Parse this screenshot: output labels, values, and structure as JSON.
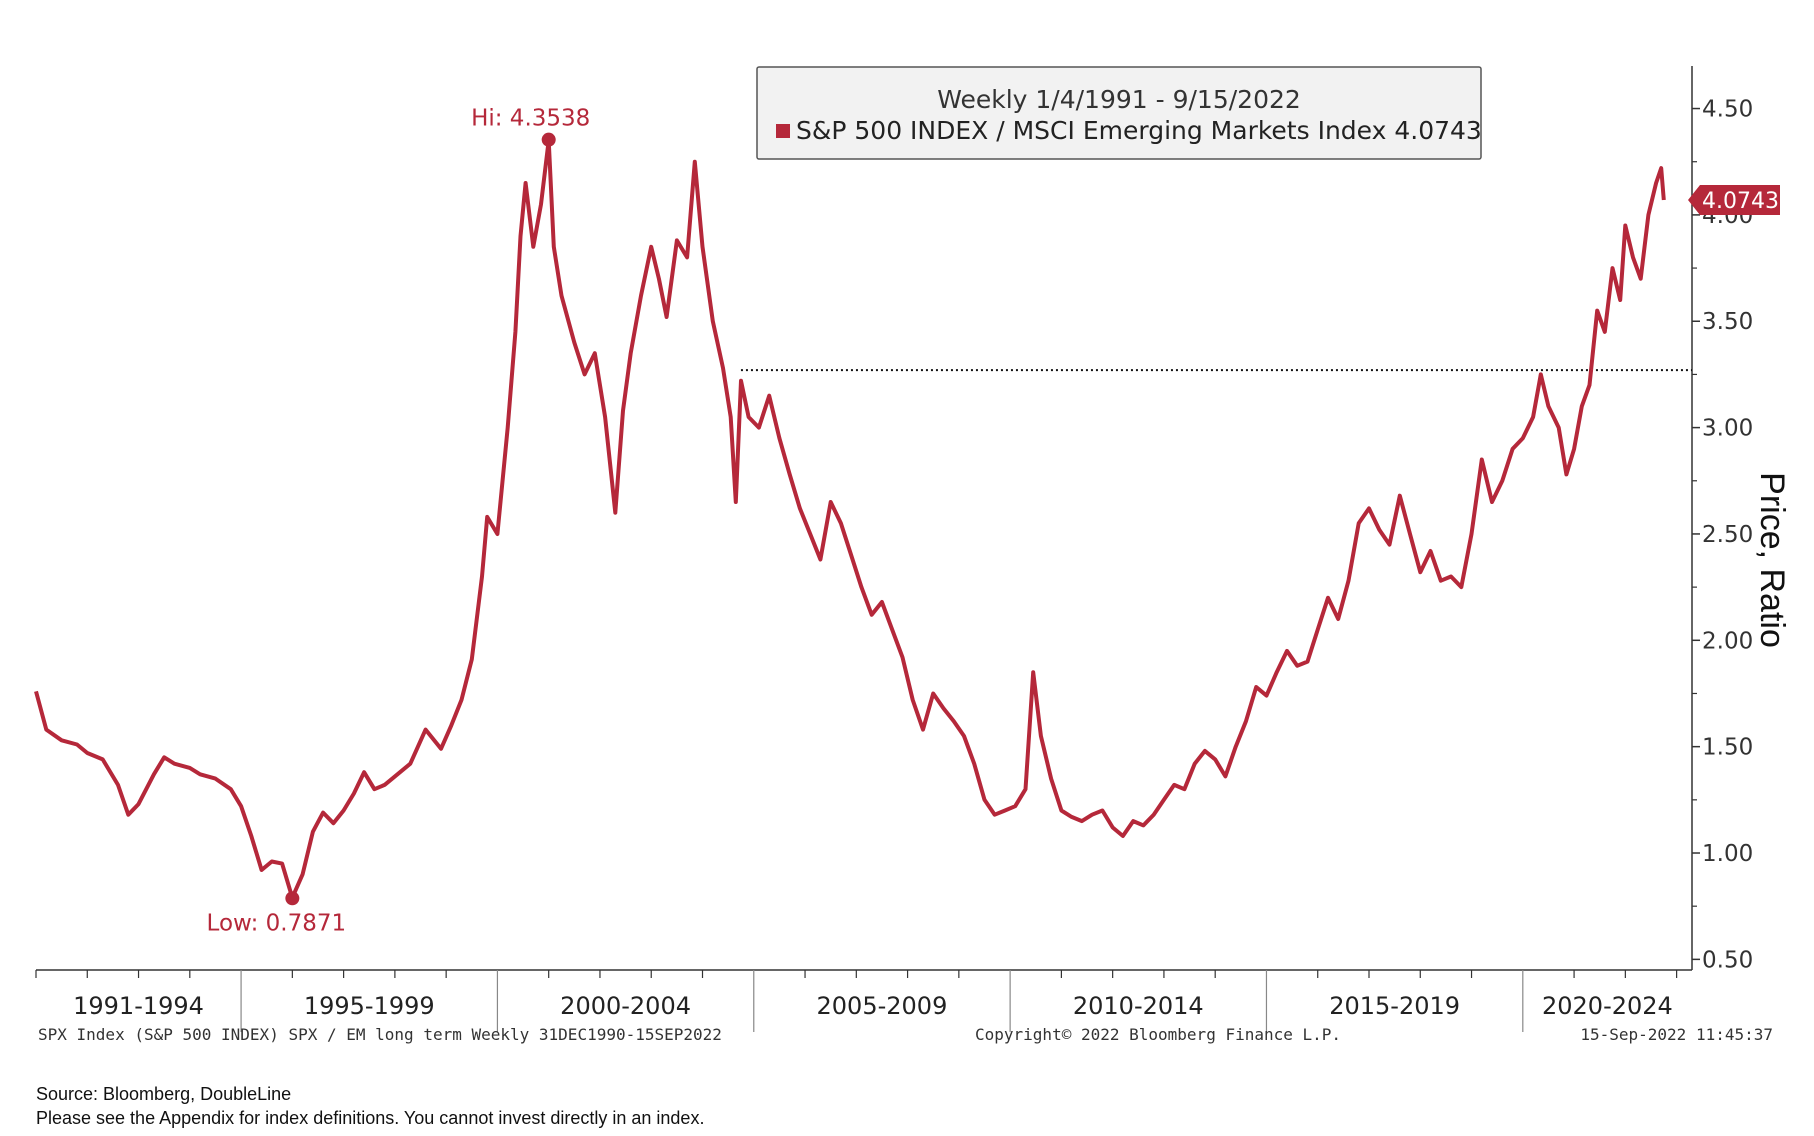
{
  "chart_data": {
    "type": "line",
    "title": "Weekly 1/4/1991 - 9/15/2022",
    "series": [
      {
        "name": "S&P 500 INDEX / MSCI Emerging Markets Index",
        "legend_label": "S&P 500 INDEX / MSCI Emerging Markets Index 4.0743",
        "last_value": "4.0743",
        "color": "#b5283a",
        "points": [
          [
            1991.0,
            1.76
          ],
          [
            1991.2,
            1.58
          ],
          [
            1991.5,
            1.53
          ],
          [
            1991.8,
            1.51
          ],
          [
            1992.0,
            1.47
          ],
          [
            1992.3,
            1.44
          ],
          [
            1992.6,
            1.32
          ],
          [
            1992.8,
            1.18
          ],
          [
            1993.0,
            1.23
          ],
          [
            1993.3,
            1.37
          ],
          [
            1993.5,
            1.45
          ],
          [
            1993.7,
            1.42
          ],
          [
            1994.0,
            1.4
          ],
          [
            1994.2,
            1.37
          ],
          [
            1994.5,
            1.35
          ],
          [
            1994.8,
            1.3
          ],
          [
            1995.0,
            1.22
          ],
          [
            1995.2,
            1.08
          ],
          [
            1995.4,
            0.92
          ],
          [
            1995.6,
            0.96
          ],
          [
            1995.8,
            0.95
          ],
          [
            1996.0,
            0.79
          ],
          [
            1996.2,
            0.9
          ],
          [
            1996.4,
            1.1
          ],
          [
            1996.6,
            1.19
          ],
          [
            1996.8,
            1.14
          ],
          [
            1997.0,
            1.2
          ],
          [
            1997.2,
            1.28
          ],
          [
            1997.4,
            1.38
          ],
          [
            1997.6,
            1.3
          ],
          [
            1997.8,
            1.32
          ],
          [
            1998.0,
            1.36
          ],
          [
            1998.3,
            1.42
          ],
          [
            1998.6,
            1.58
          ],
          [
            1998.9,
            1.49
          ],
          [
            1999.1,
            1.6
          ],
          [
            1999.3,
            1.72
          ],
          [
            1999.5,
            1.91
          ],
          [
            1999.7,
            2.3
          ],
          [
            1999.8,
            2.58
          ],
          [
            2000.0,
            2.5
          ],
          [
            2000.2,
            3.0
          ],
          [
            2000.35,
            3.45
          ],
          [
            2000.45,
            3.9
          ],
          [
            2000.55,
            4.15
          ],
          [
            2000.7,
            3.85
          ],
          [
            2000.85,
            4.05
          ],
          [
            2001.0,
            4.35
          ],
          [
            2001.1,
            3.85
          ],
          [
            2001.25,
            3.62
          ],
          [
            2001.5,
            3.4
          ],
          [
            2001.7,
            3.25
          ],
          [
            2001.9,
            3.35
          ],
          [
            2002.1,
            3.05
          ],
          [
            2002.3,
            2.6
          ],
          [
            2002.45,
            3.08
          ],
          [
            2002.6,
            3.35
          ],
          [
            2002.8,
            3.62
          ],
          [
            2003.0,
            3.85
          ],
          [
            2003.15,
            3.7
          ],
          [
            2003.3,
            3.52
          ],
          [
            2003.5,
            3.88
          ],
          [
            2003.7,
            3.8
          ],
          [
            2003.85,
            4.25
          ],
          [
            2004.0,
            3.85
          ],
          [
            2004.2,
            3.5
          ],
          [
            2004.4,
            3.28
          ],
          [
            2004.55,
            3.05
          ],
          [
            2004.65,
            2.65
          ],
          [
            2004.75,
            3.22
          ],
          [
            2004.9,
            3.05
          ],
          [
            2005.1,
            3.0
          ],
          [
            2005.3,
            3.15
          ],
          [
            2005.5,
            2.95
          ],
          [
            2005.7,
            2.78
          ],
          [
            2005.9,
            2.62
          ],
          [
            2006.1,
            2.5
          ],
          [
            2006.3,
            2.38
          ],
          [
            2006.5,
            2.65
          ],
          [
            2006.7,
            2.55
          ],
          [
            2006.9,
            2.4
          ],
          [
            2007.1,
            2.25
          ],
          [
            2007.3,
            2.12
          ],
          [
            2007.5,
            2.18
          ],
          [
            2007.7,
            2.05
          ],
          [
            2007.9,
            1.92
          ],
          [
            2008.1,
            1.72
          ],
          [
            2008.3,
            1.58
          ],
          [
            2008.5,
            1.75
          ],
          [
            2008.7,
            1.68
          ],
          [
            2008.9,
            1.62
          ],
          [
            2009.1,
            1.55
          ],
          [
            2009.3,
            1.42
          ],
          [
            2009.5,
            1.25
          ],
          [
            2009.7,
            1.18
          ],
          [
            2009.9,
            1.2
          ],
          [
            2010.1,
            1.22
          ],
          [
            2010.3,
            1.3
          ],
          [
            2010.45,
            1.85
          ],
          [
            2010.6,
            1.55
          ],
          [
            2010.8,
            1.35
          ],
          [
            2011.0,
            1.2
          ],
          [
            2011.2,
            1.17
          ],
          [
            2011.4,
            1.15
          ],
          [
            2011.6,
            1.18
          ],
          [
            2011.8,
            1.2
          ],
          [
            2012.0,
            1.12
          ],
          [
            2012.2,
            1.08
          ],
          [
            2012.4,
            1.15
          ],
          [
            2012.6,
            1.13
          ],
          [
            2012.8,
            1.18
          ],
          [
            2013.0,
            1.25
          ],
          [
            2013.2,
            1.32
          ],
          [
            2013.4,
            1.3
          ],
          [
            2013.6,
            1.42
          ],
          [
            2013.8,
            1.48
          ],
          [
            2014.0,
            1.44
          ],
          [
            2014.2,
            1.36
          ],
          [
            2014.4,
            1.5
          ],
          [
            2014.6,
            1.62
          ],
          [
            2014.8,
            1.78
          ],
          [
            2015.0,
            1.74
          ],
          [
            2015.2,
            1.85
          ],
          [
            2015.4,
            1.95
          ],
          [
            2015.6,
            1.88
          ],
          [
            2015.8,
            1.9
          ],
          [
            2016.0,
            2.05
          ],
          [
            2016.2,
            2.2
          ],
          [
            2016.4,
            2.1
          ],
          [
            2016.6,
            2.28
          ],
          [
            2016.8,
            2.55
          ],
          [
            2017.0,
            2.62
          ],
          [
            2017.2,
            2.52
          ],
          [
            2017.4,
            2.45
          ],
          [
            2017.6,
            2.68
          ],
          [
            2017.8,
            2.5
          ],
          [
            2018.0,
            2.32
          ],
          [
            2018.2,
            2.42
          ],
          [
            2018.4,
            2.28
          ],
          [
            2018.6,
            2.3
          ],
          [
            2018.8,
            2.25
          ],
          [
            2019.0,
            2.5
          ],
          [
            2019.2,
            2.85
          ],
          [
            2019.4,
            2.65
          ],
          [
            2019.6,
            2.75
          ],
          [
            2019.8,
            2.9
          ],
          [
            2020.0,
            2.95
          ],
          [
            2020.2,
            3.05
          ],
          [
            2020.35,
            3.25
          ],
          [
            2020.5,
            3.1
          ],
          [
            2020.7,
            3.0
          ],
          [
            2020.85,
            2.78
          ],
          [
            2021.0,
            2.9
          ],
          [
            2021.15,
            3.1
          ],
          [
            2021.3,
            3.2
          ],
          [
            2021.45,
            3.55
          ],
          [
            2021.6,
            3.45
          ],
          [
            2021.75,
            3.75
          ],
          [
            2021.9,
            3.6
          ],
          [
            2022.0,
            3.95
          ],
          [
            2022.15,
            3.8
          ],
          [
            2022.3,
            3.7
          ],
          [
            2022.45,
            4.0
          ],
          [
            2022.6,
            4.15
          ],
          [
            2022.7,
            4.22
          ],
          [
            2022.75,
            4.07
          ]
        ]
      }
    ],
    "reference_line": {
      "value": 3.27,
      "x_start": 2004.75,
      "style": "dotted"
    },
    "annotations": [
      {
        "label": "Hi: 4.3538",
        "x": 2001.0,
        "y": 4.3538
      },
      {
        "label": "Low: 0.7871",
        "x": 1996.0,
        "y": 0.7871
      }
    ],
    "xlim": [
      1991.0,
      2023.3
    ],
    "ylim": [
      0.45,
      4.7
    ],
    "yticks": [
      {
        "value": 4.5,
        "label": "4.50"
      },
      {
        "value": 4.0,
        "label": "4.00"
      },
      {
        "value": 3.5,
        "label": "3.50"
      },
      {
        "value": 3.0,
        "label": "3.00"
      },
      {
        "value": 2.5,
        "label": "2.50"
      },
      {
        "value": 2.0,
        "label": "2.00"
      },
      {
        "value": 1.5,
        "label": "1.50"
      },
      {
        "value": 1.0,
        "label": "1.00"
      },
      {
        "value": 0.5,
        "label": "0.50"
      }
    ],
    "x_periods": [
      {
        "label": "1991-1994",
        "start": 1991,
        "end": 1995
      },
      {
        "label": "1995-1999",
        "start": 1995,
        "end": 2000
      },
      {
        "label": "2000-2004",
        "start": 2000,
        "end": 2005
      },
      {
        "label": "2005-2009",
        "start": 2005,
        "end": 2010
      },
      {
        "label": "2010-2014",
        "start": 2010,
        "end": 2015
      },
      {
        "label": "2015-2019",
        "start": 2015,
        "end": 2020
      },
      {
        "label": "2020-2024",
        "start": 2020,
        "end": 2025
      }
    ],
    "ylabel": "Price, Ratio",
    "xlabel": "",
    "grid": false,
    "legend_position": "top-center"
  },
  "footer": {
    "left": "SPX Index (S&P 500 INDEX) SPX / EM long term  Weekly 31DEC1990-15SEP2022",
    "center": "Copyright© 2022 Bloomberg Finance L.P.",
    "right": "15-Sep-2022 11:45:37"
  },
  "source": {
    "line1": "Source: Bloomberg, DoubleLine",
    "line2": "Please see the Appendix for index definitions. You cannot invest directly in an index."
  }
}
